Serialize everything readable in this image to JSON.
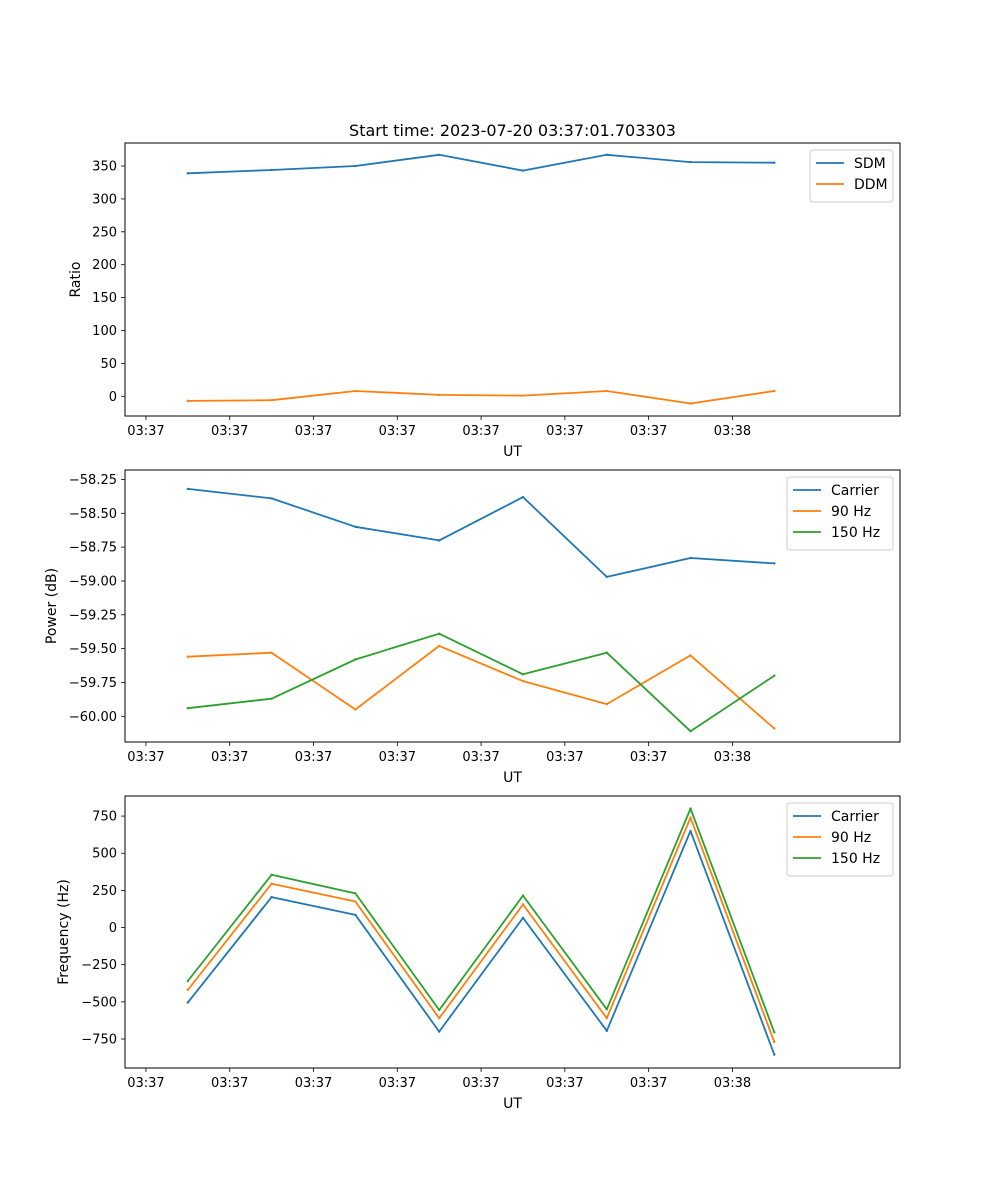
{
  "title": "Start time: 2023-07-20 03:37:01.703303",
  "colors": {
    "c0": "#1f77b4",
    "c1": "#ff7f0e",
    "c2": "#2ca02c"
  },
  "chart_data": [
    {
      "type": "line",
      "xlabel": "UT",
      "ylabel": "Ratio",
      "x_tick_labels": [
        "03:37",
        "03:37",
        "03:37",
        "03:37",
        "03:37",
        "03:37",
        "03:37"
      ],
      "x_tick_last": "03:38",
      "xlim": [
        -0.25,
        9.0
      ],
      "ylim": [
        -30,
        385
      ],
      "yticks": [
        0,
        50,
        100,
        150,
        200,
        250,
        300,
        350
      ],
      "ytick_labels": [
        "0",
        "50",
        "100",
        "150",
        "200",
        "250",
        "300",
        "350"
      ],
      "legend_loc": "top-right",
      "x": [
        0.5,
        1.5,
        2.5,
        3.5,
        4.5,
        5.5,
        6.5,
        7.5
      ],
      "series": [
        {
          "name": "SDM",
          "color": "#1f77b4",
          "values": [
            339,
            344,
            350,
            367,
            343,
            367,
            356,
            355
          ]
        },
        {
          "name": "DDM",
          "color": "#ff7f0e",
          "values": [
            -7,
            -6,
            8,
            2,
            1,
            8,
            -11,
            8
          ]
        }
      ]
    },
    {
      "type": "line",
      "xlabel": "UT",
      "ylabel": "Power (dB)",
      "x_tick_labels": [
        "03:37",
        "03:37",
        "03:37",
        "03:37",
        "03:37",
        "03:37",
        "03:37"
      ],
      "x_tick_last": "03:38",
      "xlim": [
        -0.25,
        9.0
      ],
      "ylim": [
        -60.19,
        -58.18
      ],
      "yticks": [
        -60.0,
        -59.75,
        -59.5,
        -59.25,
        -59.0,
        -58.75,
        -58.5,
        -58.25
      ],
      "ytick_labels": [
        "−60.00",
        "−59.75",
        "−59.50",
        "−59.25",
        "−59.00",
        "−58.75",
        "−58.50",
        "−58.25"
      ],
      "legend_loc": "top-right",
      "x": [
        0.5,
        1.5,
        2.5,
        3.5,
        4.5,
        5.5,
        6.5,
        7.5
      ],
      "series": [
        {
          "name": "Carrier",
          "color": "#1f77b4",
          "values": [
            -58.32,
            -58.39,
            -58.6,
            -58.7,
            -58.38,
            -58.97,
            -58.83,
            -58.87
          ]
        },
        {
          "name": "90 Hz",
          "color": "#ff7f0e",
          "values": [
            -59.56,
            -59.53,
            -59.95,
            -59.48,
            -59.74,
            -59.91,
            -59.55,
            -60.09
          ]
        },
        {
          "name": "150 Hz",
          "color": "#2ca02c",
          "values": [
            -59.94,
            -59.87,
            -59.58,
            -59.39,
            -59.69,
            -59.53,
            -60.11,
            -59.7
          ]
        }
      ]
    },
    {
      "type": "line",
      "xlabel": "UT",
      "ylabel": "Frequency (Hz)",
      "x_tick_labels": [
        "03:37",
        "03:37",
        "03:37",
        "03:37",
        "03:37",
        "03:37",
        "03:37"
      ],
      "x_tick_last": "03:38",
      "xlim": [
        -0.25,
        9.0
      ],
      "ylim": [
        -945,
        885
      ],
      "yticks": [
        -750,
        -500,
        -250,
        0,
        250,
        500,
        750
      ],
      "ytick_labels": [
        "−750",
        "−500",
        "−250",
        "0",
        "250",
        "500",
        "750"
      ],
      "legend_loc": "top-right",
      "x": [
        0.5,
        1.5,
        2.5,
        3.5,
        4.5,
        5.5,
        6.5,
        7.5
      ],
      "series": [
        {
          "name": "Carrier",
          "color": "#1f77b4",
          "values": [
            -505,
            205,
            85,
            -700,
            65,
            -695,
            650,
            -855
          ]
        },
        {
          "name": "90 Hz",
          "color": "#ff7f0e",
          "values": [
            -420,
            295,
            175,
            -610,
            155,
            -610,
            740,
            -770
          ]
        },
        {
          "name": "150 Hz",
          "color": "#2ca02c",
          "values": [
            -360,
            355,
            230,
            -555,
            215,
            -550,
            800,
            -705
          ]
        }
      ]
    }
  ]
}
